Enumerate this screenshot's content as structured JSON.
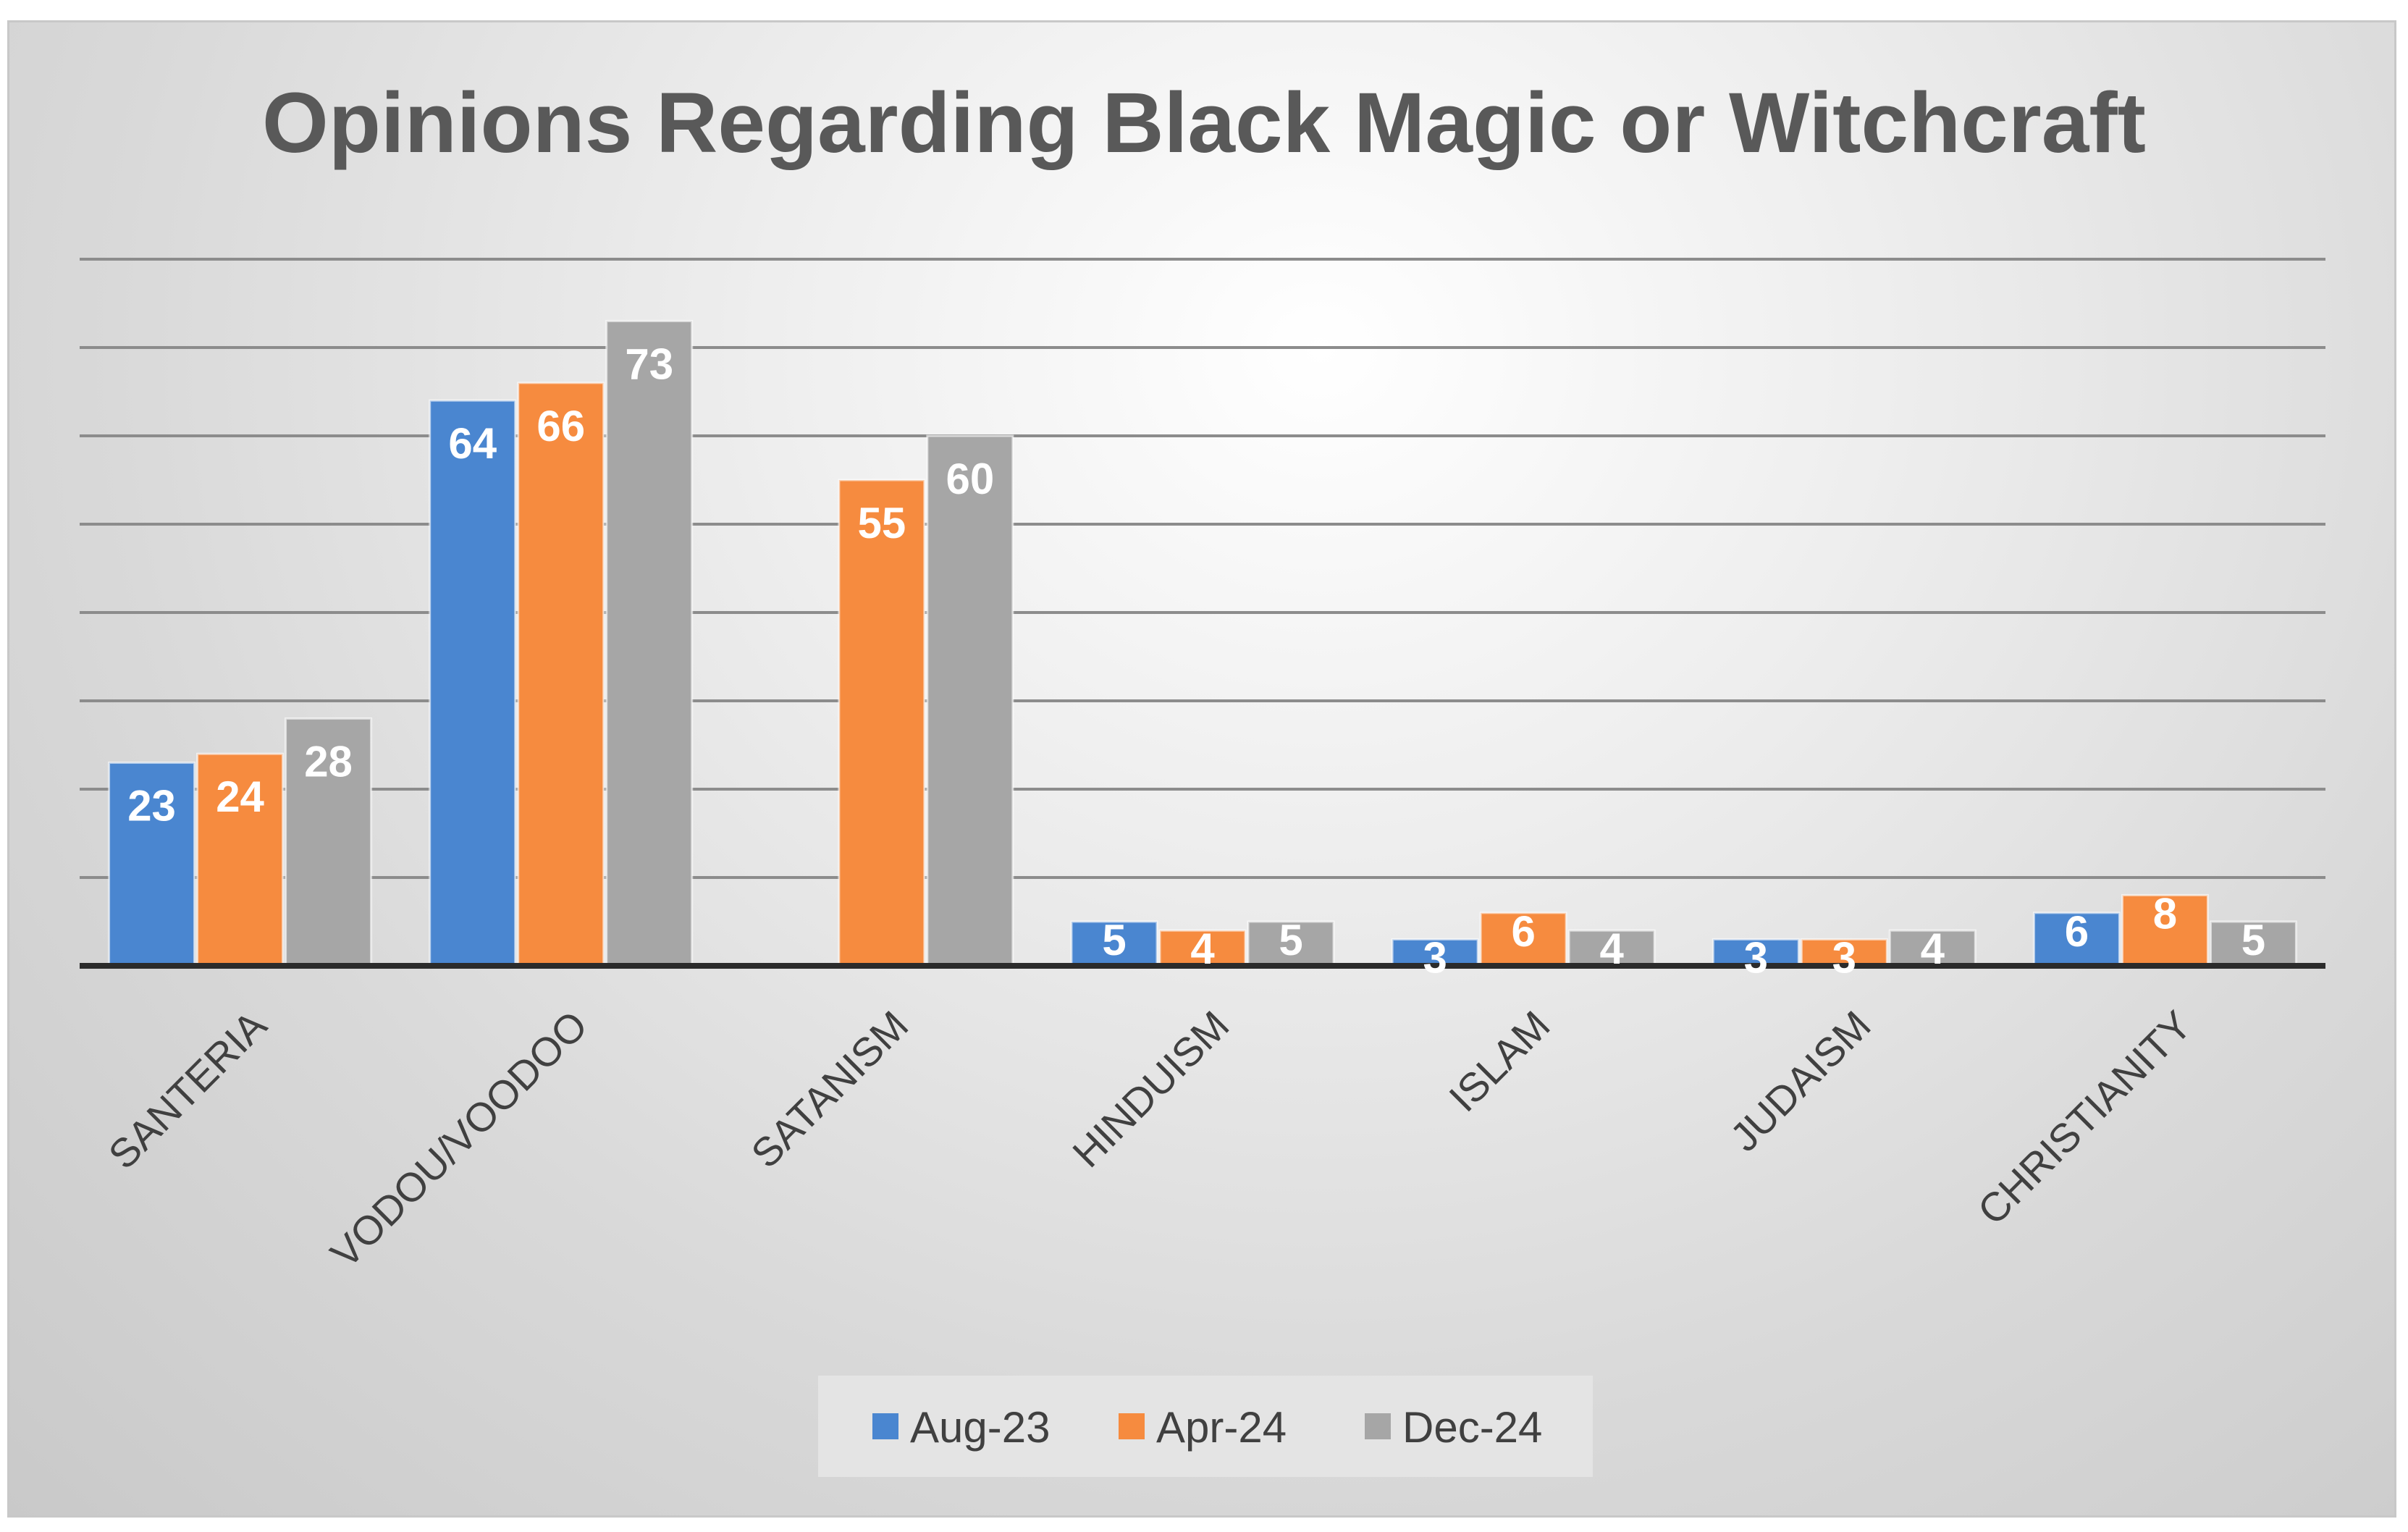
{
  "chart_data": {
    "type": "bar",
    "title": "Opinions Regarding Black Magic or Witchcraft",
    "categories": [
      "SANTERIA",
      "VODOU/VOODOO",
      "SATANISM",
      "HINDUISM",
      "ISLAM",
      "JUDAISM",
      "CHRISTIANITY"
    ],
    "series": [
      {
        "name": "Aug-23",
        "color": "#4a86d0",
        "values": [
          23,
          64,
          null,
          5,
          3,
          3,
          6
        ]
      },
      {
        "name": "Apr-24",
        "color": "#f68b3f",
        "values": [
          24,
          66,
          55,
          4,
          6,
          3,
          8
        ]
      },
      {
        "name": "Dec-24",
        "color": "#a6a6a6",
        "values": [
          28,
          73,
          60,
          5,
          4,
          4,
          5
        ]
      }
    ],
    "ylim": [
      0,
      80
    ],
    "grid": true,
    "data_labels": true,
    "legend_position": "bottom",
    "xlabel": "",
    "ylabel": ""
  }
}
